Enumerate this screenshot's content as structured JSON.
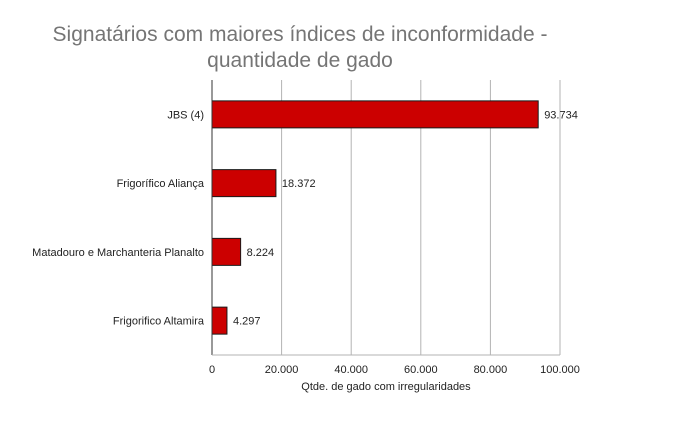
{
  "chart_data": {
    "type": "bar",
    "orientation": "horizontal",
    "title": [
      "Signatários com maiores índices de inconformidade -",
      "quantidade de gado"
    ],
    "categories": [
      "JBS (4)",
      "Frigorífico Aliança",
      "Matadouro e Marchanteria Planalto",
      "Frigorifico Altamira"
    ],
    "values": [
      93734,
      18372,
      8224,
      4297
    ],
    "value_labels": [
      "93.734",
      "18.372",
      "8.224",
      "4.297"
    ],
    "xlabel": "Qtde. de gado com irregularidades",
    "ylabel": "",
    "xlim": [
      0,
      100000
    ],
    "xticks": [
      0,
      20000,
      40000,
      60000,
      80000,
      100000
    ],
    "xtick_labels": [
      "0",
      "20.000",
      "40.000",
      "60.000",
      "80.000",
      "100.000"
    ],
    "grid": true,
    "legend": "none",
    "colors": {
      "bar_fill": "#cc0000",
      "bar_stroke": "#1a1a1a",
      "grid": "#b3b3b3",
      "axis": "#333333",
      "title": "#757575"
    }
  }
}
